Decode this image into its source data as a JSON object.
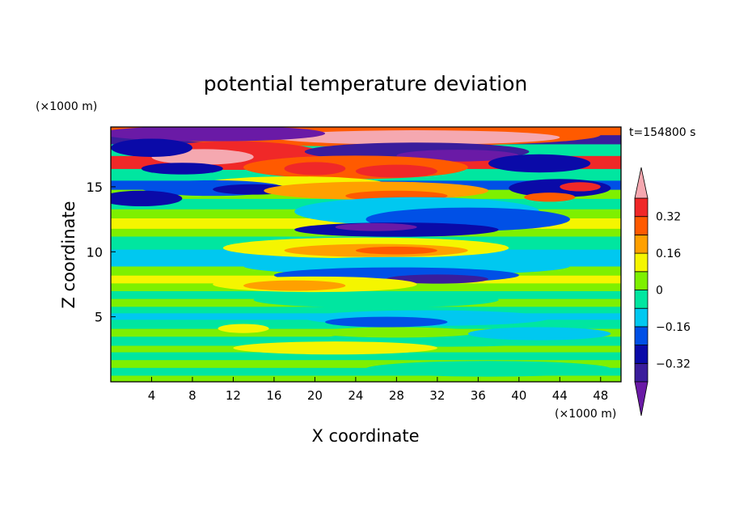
{
  "chart_data": {
    "type": "heatmap",
    "title": "potential temperature deviation",
    "xlabel": "X coordinate",
    "ylabel": "Z coordinate",
    "x_unit_label": "(×1000 m)",
    "y_unit_label": "(×1000 m)",
    "time_label": "t=154800 s",
    "xlim": [
      0,
      50
    ],
    "ylim": [
      0,
      19.6
    ],
    "x_ticks": [
      4,
      8,
      12,
      16,
      20,
      24,
      28,
      32,
      36,
      40,
      44,
      48
    ],
    "y_ticks": [
      5,
      10,
      15
    ],
    "colorbar": {
      "levels": [
        -0.4,
        -0.32,
        -0.24,
        -0.16,
        -0.08,
        0,
        0.08,
        0.16,
        0.24,
        0.32,
        0.4
      ],
      "colors": [
        "#6a1aa6",
        "#3a1d9c",
        "#0a0aa8",
        "#0050e6",
        "#00c8f0",
        "#00e6a0",
        "#7ef000",
        "#f5f500",
        "#ffa000",
        "#ff5a00",
        "#f02828",
        "#f5a8b0"
      ],
      "tick_values": [
        -0.32,
        -0.16,
        0,
        0.16,
        0.32
      ],
      "tick_labels": [
        "−0.32",
        "−0.16",
        "0",
        "0.16",
        "0.32"
      ]
    },
    "field_description": "horizontally banded deviation pattern with wave structures between x=12 and x=40"
  }
}
